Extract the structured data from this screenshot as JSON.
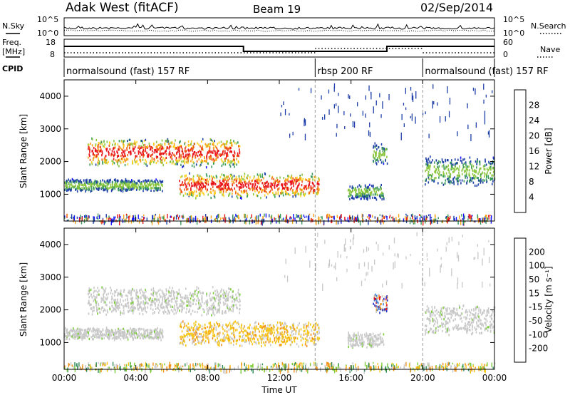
{
  "header": {
    "title": "Adak West (fitACF)",
    "beam": "Beam 19",
    "date": "02/Sep/2014"
  },
  "top_panels": {
    "left_labels": [
      "N.Sky",
      "Freq.",
      "[MHz]",
      "CPID"
    ],
    "right_labels": [
      "N.Search",
      "Nave"
    ],
    "nsky_ticks": [
      "10^5",
      "10^0"
    ],
    "freq_ticks": [
      "18",
      "8"
    ],
    "nave_ticks": [
      "60",
      "0"
    ],
    "cpid_segments": [
      {
        "label": "normalsound (fast) 157 RF",
        "start_hour": 0,
        "end_hour": 14
      },
      {
        "label": "rbsp 200 RF",
        "start_hour": 14,
        "end_hour": 20
      },
      {
        "label": "normalsound (fast) 157 RF",
        "start_hour": 20,
        "end_hour": 24
      }
    ],
    "freq_trace": [
      {
        "from": 0,
        "to": 10,
        "level": "high"
      },
      {
        "from": 10,
        "to": 18,
        "level": "low"
      },
      {
        "from": 18,
        "to": 24,
        "level": "high"
      }
    ]
  },
  "chart_data": [
    {
      "type": "heatmap",
      "name": "power",
      "ylabel": "Slant Range [km]",
      "y_ticks": [
        1000,
        2000,
        3000,
        4000
      ],
      "ylim": [
        180,
        4500
      ],
      "colorbar_label": "Power [dB]",
      "colorbar_ticks": [
        "28",
        "24",
        "20",
        "16",
        "12",
        "8",
        "4"
      ],
      "colorbar_colors": [
        "#e8141a",
        "#f05a14",
        "#f7a11c",
        "#ffd220",
        "#8cc63f",
        "#3a9a5a",
        "#1e3fa8",
        "#1414ff"
      ],
      "echo_regions": [
        {
          "t0": 1.3,
          "t1": 9.8,
          "r0": 1850,
          "r1": 2750,
          "level": "high"
        },
        {
          "t0": 6.4,
          "t1": 14.2,
          "r0": 900,
          "r1": 1700,
          "level": "high"
        },
        {
          "t0": 0.0,
          "t1": 5.5,
          "r0": 1100,
          "r1": 1500,
          "level": "low"
        },
        {
          "t0": 15.8,
          "t1": 17.8,
          "r0": 850,
          "r1": 1350,
          "level": "low"
        },
        {
          "t0": 17.2,
          "t1": 18.0,
          "r0": 1900,
          "r1": 2600,
          "level": "low"
        },
        {
          "t0": 20.1,
          "t1": 24.0,
          "r0": 1250,
          "r1": 2200,
          "level": "low"
        }
      ]
    },
    {
      "type": "heatmap",
      "name": "velocity",
      "xlabel": "Time UT",
      "ylabel": "Slant Range [km]",
      "x_ticks": [
        "00:00",
        "04:00",
        "08:00",
        "12:00",
        "16:00",
        "20:00",
        "00:00"
      ],
      "y_ticks": [
        1000,
        2000,
        3000,
        4000
      ],
      "ylim": [
        180,
        4500
      ],
      "colorbar_label": "Velocity [m s⁻¹]",
      "colorbar_ticks": [
        "200",
        "100",
        "50",
        "15",
        "-15",
        "-50",
        "-100",
        "-200"
      ],
      "colorbar_colors": [
        "#2030c8",
        "#3a7ed8",
        "#2e8b57",
        "#7ccc3a",
        "#c8c8c8",
        "#f5c518",
        "#f39019",
        "#ee5a1a",
        "#e8141a"
      ],
      "echo_regions": [
        {
          "t0": 1.3,
          "t1": 9.8,
          "r0": 1850,
          "r1": 2750,
          "tone": "gray"
        },
        {
          "t0": 6.4,
          "t1": 14.2,
          "r0": 900,
          "r1": 1700,
          "tone": "orange"
        },
        {
          "t0": 0.0,
          "t1": 5.5,
          "r0": 1100,
          "r1": 1500,
          "tone": "gray"
        },
        {
          "t0": 15.8,
          "t1": 17.8,
          "r0": 850,
          "r1": 1350,
          "tone": "gray"
        },
        {
          "t0": 17.2,
          "t1": 18.0,
          "r0": 1900,
          "r1": 2600,
          "tone": "mixed"
        },
        {
          "t0": 20.1,
          "t1": 24.0,
          "r0": 1250,
          "r1": 2200,
          "tone": "gray"
        }
      ]
    }
  ]
}
